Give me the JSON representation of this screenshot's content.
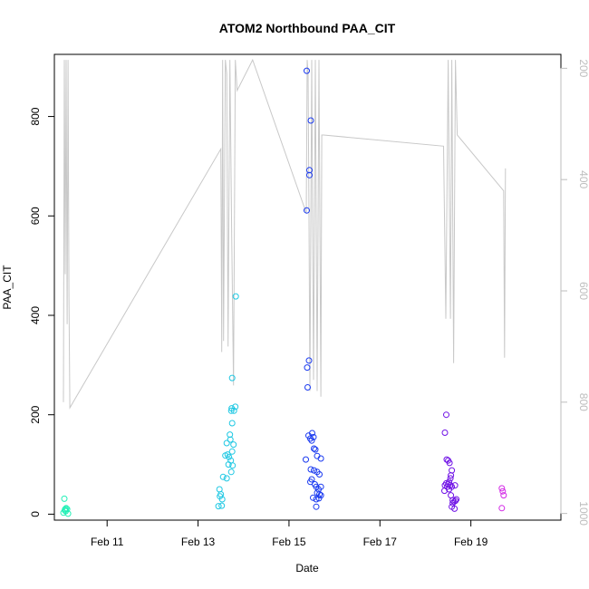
{
  "chart_data": {
    "type": "scatter",
    "title": "ATOM2 Northbound PAA_CIT",
    "xlabel": "Date",
    "ylabel": "PAA_CIT",
    "x_axis": {
      "range_days": [
        9.84,
        20.98
      ],
      "ticks": [
        {
          "pos": 11,
          "label": "Feb 11"
        },
        {
          "pos": 13,
          "label": "Feb 13"
        },
        {
          "pos": 15,
          "label": "Feb 15"
        },
        {
          "pos": 17,
          "label": "Feb 17"
        },
        {
          "pos": 19,
          "label": "Feb 19"
        }
      ]
    },
    "y_axis": {
      "range": [
        -12,
        925
      ],
      "ticks": [
        0,
        200,
        400,
        600,
        800
      ]
    },
    "y2_axis": {
      "range": [
        1012,
        175
      ],
      "ticks": [
        200,
        400,
        600,
        800,
        1000
      ],
      "reversed": true,
      "color": "#bdbdbd"
    },
    "grid": false,
    "points": [
      {
        "x": 10.04,
        "y": 3,
        "color": "#21f0b6"
      },
      {
        "x": 10.07,
        "y": 8,
        "color": "#21f0b6"
      },
      {
        "x": 10.08,
        "y": 10,
        "color": "#21f0b6"
      },
      {
        "x": 10.06,
        "y": 31,
        "color": "#21f0b6"
      },
      {
        "x": 10.1,
        "y": 12,
        "color": "#21f0b6"
      },
      {
        "x": 10.12,
        "y": 10,
        "color": "#21f0b6"
      },
      {
        "x": 10.14,
        "y": 1,
        "color": "#21f0b6"
      },
      {
        "x": 10.09,
        "y": 6,
        "color": "#21f0b6"
      },
      {
        "x": 13.45,
        "y": 16,
        "color": "#1fc8e3"
      },
      {
        "x": 13.48,
        "y": 36,
        "color": "#1fc8e3"
      },
      {
        "x": 13.52,
        "y": 17,
        "color": "#1fc8e3"
      },
      {
        "x": 13.5,
        "y": 40,
        "color": "#1fc8e3"
      },
      {
        "x": 13.53,
        "y": 30,
        "color": "#1fc8e3"
      },
      {
        "x": 13.47,
        "y": 50,
        "color": "#1fc8e3"
      },
      {
        "x": 13.55,
        "y": 75,
        "color": "#1fc8e3"
      },
      {
        "x": 13.63,
        "y": 72,
        "color": "#1fc8e3"
      },
      {
        "x": 13.6,
        "y": 118,
        "color": "#1fc8e3"
      },
      {
        "x": 13.65,
        "y": 120,
        "color": "#1fc8e3"
      },
      {
        "x": 13.68,
        "y": 115,
        "color": "#1fc8e3"
      },
      {
        "x": 13.63,
        "y": 143,
        "color": "#1fc8e3"
      },
      {
        "x": 13.71,
        "y": 150,
        "color": "#1fc8e3"
      },
      {
        "x": 13.7,
        "y": 160,
        "color": "#1fc8e3"
      },
      {
        "x": 13.67,
        "y": 100,
        "color": "#1fc8e3"
      },
      {
        "x": 13.72,
        "y": 108,
        "color": "#1fc8e3"
      },
      {
        "x": 13.75,
        "y": 126,
        "color": "#1fc8e3"
      },
      {
        "x": 13.78,
        "y": 140,
        "color": "#1fc8e3"
      },
      {
        "x": 13.76,
        "y": 98,
        "color": "#1fc8e3"
      },
      {
        "x": 13.73,
        "y": 85,
        "color": "#1fc8e3"
      },
      {
        "x": 13.75,
        "y": 183,
        "color": "#1fc8e3"
      },
      {
        "x": 13.73,
        "y": 208,
        "color": "#1fc8e3"
      },
      {
        "x": 13.74,
        "y": 213,
        "color": "#1fc8e3"
      },
      {
        "x": 13.79,
        "y": 208,
        "color": "#1fc8e3"
      },
      {
        "x": 13.82,
        "y": 216,
        "color": "#1fc8e3"
      },
      {
        "x": 13.75,
        "y": 274,
        "color": "#1fc8e3"
      },
      {
        "x": 13.83,
        "y": 438,
        "color": "#1fc8e3"
      },
      {
        "x": 15.39,
        "y": 892,
        "color": "#1a3af0"
      },
      {
        "x": 15.48,
        "y": 792,
        "color": "#1a3af0"
      },
      {
        "x": 15.45,
        "y": 692,
        "color": "#1a3af0"
      },
      {
        "x": 15.45,
        "y": 682,
        "color": "#1a3af0"
      },
      {
        "x": 15.39,
        "y": 611,
        "color": "#1a3af0"
      },
      {
        "x": 15.44,
        "y": 309,
        "color": "#1a3af0"
      },
      {
        "x": 15.4,
        "y": 295,
        "color": "#1a3af0"
      },
      {
        "x": 15.41,
        "y": 255,
        "color": "#1a3af0"
      },
      {
        "x": 15.43,
        "y": 158,
        "color": "#1a3af0"
      },
      {
        "x": 15.47,
        "y": 152,
        "color": "#1a3af0"
      },
      {
        "x": 15.51,
        "y": 163,
        "color": "#1a3af0"
      },
      {
        "x": 15.54,
        "y": 155,
        "color": "#1a3af0"
      },
      {
        "x": 15.5,
        "y": 148,
        "color": "#1a3af0"
      },
      {
        "x": 15.55,
        "y": 132,
        "color": "#1a3af0"
      },
      {
        "x": 15.58,
        "y": 130,
        "color": "#1a3af0"
      },
      {
        "x": 15.62,
        "y": 117,
        "color": "#1a3af0"
      },
      {
        "x": 15.7,
        "y": 112,
        "color": "#1a3af0"
      },
      {
        "x": 15.37,
        "y": 110,
        "color": "#1a3af0"
      },
      {
        "x": 15.48,
        "y": 90,
        "color": "#1a3af0"
      },
      {
        "x": 15.55,
        "y": 88,
        "color": "#1a3af0"
      },
      {
        "x": 15.62,
        "y": 85,
        "color": "#1a3af0"
      },
      {
        "x": 15.67,
        "y": 80,
        "color": "#1a3af0"
      },
      {
        "x": 15.5,
        "y": 70,
        "color": "#1a3af0"
      },
      {
        "x": 15.47,
        "y": 65,
        "color": "#1a3af0"
      },
      {
        "x": 15.57,
        "y": 60,
        "color": "#1a3af0"
      },
      {
        "x": 15.6,
        "y": 55,
        "color": "#1a3af0"
      },
      {
        "x": 15.65,
        "y": 50,
        "color": "#1a3af0"
      },
      {
        "x": 15.7,
        "y": 55,
        "color": "#1a3af0"
      },
      {
        "x": 15.62,
        "y": 43,
        "color": "#1a3af0"
      },
      {
        "x": 15.67,
        "y": 40,
        "color": "#1a3af0"
      },
      {
        "x": 15.7,
        "y": 38,
        "color": "#1a3af0"
      },
      {
        "x": 15.53,
        "y": 33,
        "color": "#1a3af0"
      },
      {
        "x": 15.6,
        "y": 30,
        "color": "#1a3af0"
      },
      {
        "x": 15.66,
        "y": 32,
        "color": "#1a3af0"
      },
      {
        "x": 15.6,
        "y": 15,
        "color": "#1a3af0"
      },
      {
        "x": 18.46,
        "y": 200,
        "color": "#7013e6"
      },
      {
        "x": 18.43,
        "y": 164,
        "color": "#7013e6"
      },
      {
        "x": 18.47,
        "y": 110,
        "color": "#7013e6"
      },
      {
        "x": 18.5,
        "y": 108,
        "color": "#7013e6"
      },
      {
        "x": 18.53,
        "y": 103,
        "color": "#7013e6"
      },
      {
        "x": 18.58,
        "y": 88,
        "color": "#7013e6"
      },
      {
        "x": 18.56,
        "y": 78,
        "color": "#7013e6"
      },
      {
        "x": 18.55,
        "y": 72,
        "color": "#7013e6"
      },
      {
        "x": 18.52,
        "y": 65,
        "color": "#7013e6"
      },
      {
        "x": 18.46,
        "y": 62,
        "color": "#7013e6"
      },
      {
        "x": 18.43,
        "y": 58,
        "color": "#7013e6"
      },
      {
        "x": 18.48,
        "y": 55,
        "color": "#7013e6"
      },
      {
        "x": 18.5,
        "y": 60,
        "color": "#7013e6"
      },
      {
        "x": 18.55,
        "y": 58,
        "color": "#7013e6"
      },
      {
        "x": 18.58,
        "y": 55,
        "color": "#7013e6"
      },
      {
        "x": 18.65,
        "y": 58,
        "color": "#7013e6"
      },
      {
        "x": 18.42,
        "y": 47,
        "color": "#7013e6"
      },
      {
        "x": 18.52,
        "y": 50,
        "color": "#7013e6"
      },
      {
        "x": 18.56,
        "y": 38,
        "color": "#7013e6"
      },
      {
        "x": 18.6,
        "y": 28,
        "color": "#7013e6"
      },
      {
        "x": 18.63,
        "y": 25,
        "color": "#7013e6"
      },
      {
        "x": 18.66,
        "y": 27,
        "color": "#7013e6"
      },
      {
        "x": 18.6,
        "y": 22,
        "color": "#7013e6"
      },
      {
        "x": 18.58,
        "y": 15,
        "color": "#7013e6"
      },
      {
        "x": 18.64,
        "y": 11,
        "color": "#7013e6"
      },
      {
        "x": 18.68,
        "y": 30,
        "color": "#7013e6"
      },
      {
        "x": 19.68,
        "y": 52,
        "color": "#d329e6"
      },
      {
        "x": 19.7,
        "y": 46,
        "color": "#d329e6"
      },
      {
        "x": 19.72,
        "y": 38,
        "color": "#d329e6"
      },
      {
        "x": 19.68,
        "y": 12,
        "color": "#d329e6"
      }
    ],
    "line_series": {
      "color": "#c8c8c8",
      "axis": "y2",
      "x": [
        10.04,
        10.06,
        10.08,
        10.1,
        10.12,
        10.14,
        10.16,
        10.18,
        13.5,
        13.52,
        13.54,
        13.56,
        13.6,
        13.63,
        13.66,
        13.7,
        13.74,
        13.78,
        13.82,
        13.86,
        14.2,
        15.38,
        15.4,
        15.42,
        15.44,
        15.46,
        15.5,
        15.54,
        15.58,
        15.62,
        15.66,
        15.7,
        15.72,
        15.76,
        18.4,
        18.45,
        18.5,
        18.55,
        18.58,
        18.62,
        18.66,
        18.7,
        19.72,
        19.74,
        19.76
      ],
      "y": [
        800,
        185,
        570,
        185,
        660,
        185,
        610,
        810,
        345,
        710,
        185,
        690,
        185,
        210,
        700,
        185,
        500,
        770,
        185,
        240,
        185,
        460,
        185,
        210,
        470,
        780,
        185,
        760,
        185,
        780,
        185,
        790,
        320,
        320,
        340,
        650,
        185,
        650,
        185,
        730,
        185,
        320,
        420,
        720,
        380
      ]
    }
  }
}
